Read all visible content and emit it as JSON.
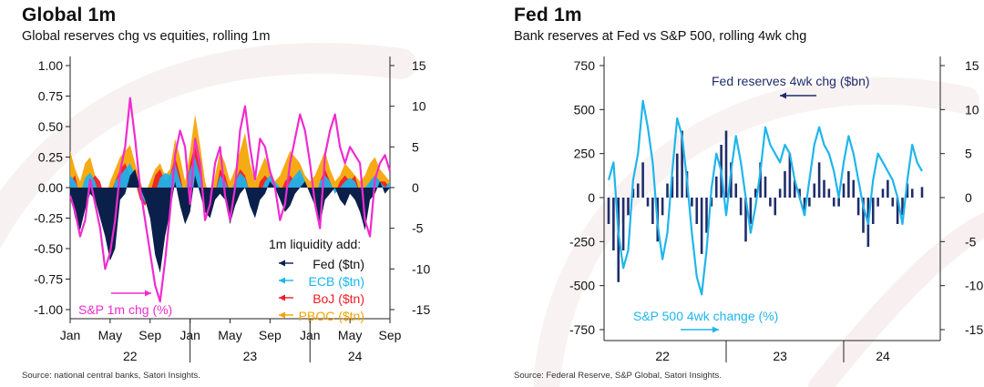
{
  "left": {
    "title": "Global 1m",
    "subtitle": "Global reserves chg vs equities, rolling 1m",
    "source": "Source: national central banks, Satori Insights.",
    "legend_title": "1m liquidity add:",
    "legend": [
      {
        "label": "Fed ($tn)",
        "color": "#0b1f4b"
      },
      {
        "label": "ECB ($tn)",
        "color": "#19b5ef"
      },
      {
        "label": "BoJ ($tn)",
        "color": "#ee1c25"
      },
      {
        "label": "PBOC ($tn)",
        "color": "#f5a300"
      }
    ],
    "sp_label": "S&P 1m chg (%)",
    "sp_color": "#f02bd0"
  },
  "right": {
    "title": "Fed 1m",
    "subtitle": "Bank reserves at Fed vs S&P 500, rolling 4wk chg",
    "source": "Source: Federal Reserve, S&P Global, Satori Insights.",
    "fed_label": "Fed reserves 4wk chg ($bn)",
    "sp_label": "S&P 500 4wk change (%)",
    "fed_color": "#1f2d6b",
    "sp_color": "#1fb5ec"
  },
  "chart_data": [
    {
      "type": "area",
      "x_tick_labels": [
        "Jan",
        "May",
        "Sep",
        "Jan",
        "May",
        "Sep",
        "Jan",
        "May",
        "Sep"
      ],
      "x_year_labels": [
        "22",
        "23",
        "24"
      ],
      "left_axis": {
        "ylim": [
          -1.0,
          1.0
        ],
        "ticks": [
          "1.00",
          "0.75",
          "0.50",
          "0.25",
          "0.00",
          "-0.25",
          "-0.50",
          "-0.75",
          "-1.00"
        ]
      },
      "right_axis": {
        "ylim": [
          -15,
          15
        ],
        "ticks": [
          "15",
          "10",
          "5",
          "0",
          "-5",
          "-10",
          "-15"
        ]
      },
      "x_months": [
        0,
        0.5,
        1,
        1.5,
        2,
        2.5,
        3,
        3.5,
        4,
        4.5,
        5,
        5.5,
        6,
        6.5,
        7,
        7.5,
        8,
        8.5,
        9,
        9.5,
        10,
        10.5,
        11,
        11.5,
        12,
        12.5,
        13,
        13.5,
        14,
        14.5,
        15,
        15.5,
        16,
        16.5,
        17,
        17.5,
        18,
        18.5,
        19,
        19.5,
        20,
        20.5,
        21,
        21.5,
        22,
        22.5,
        23,
        23.5,
        24,
        24.5,
        25,
        25.5,
        26,
        26.5,
        27,
        27.5,
        28,
        28.5,
        29,
        29.5,
        30,
        30.5,
        31,
        31.5,
        32
      ],
      "series": [
        {
          "name": "Fed ($tn)",
          "axis": "left",
          "values": [
            -0.05,
            -0.25,
            -0.35,
            -0.18,
            -0.05,
            -0.1,
            -0.25,
            -0.4,
            -0.6,
            -0.5,
            -0.1,
            -0.05,
            0.1,
            0.15,
            0.0,
            -0.1,
            -0.25,
            -0.55,
            -0.7,
            -0.4,
            -0.2,
            0.05,
            -0.15,
            -0.3,
            -0.2,
            0.1,
            -0.05,
            -0.2,
            -0.25,
            -0.1,
            -0.05,
            -0.1,
            -0.3,
            -0.15,
            -0.05,
            0.0,
            -0.15,
            -0.25,
            -0.1,
            -0.05,
            0.05,
            0.0,
            -0.1,
            -0.2,
            -0.15,
            -0.05,
            0.0,
            0.05,
            -0.05,
            -0.15,
            -0.3,
            -0.1,
            -0.05,
            0.0,
            -0.1,
            -0.15,
            -0.05,
            -0.1,
            -0.2,
            -0.35,
            -0.1,
            -0.05,
            0.05,
            -0.05,
            0.0
          ]
        },
        {
          "name": "ECB ($tn)",
          "axis": "left",
          "values": [
            0.1,
            0.05,
            -0.05,
            0.08,
            0.12,
            0.05,
            -0.08,
            -0.15,
            -0.1,
            0.05,
            0.1,
            0.15,
            0.2,
            0.1,
            -0.05,
            -0.12,
            -0.1,
            -0.05,
            0.08,
            0.12,
            0.1,
            0.2,
            0.05,
            -0.05,
            0.15,
            0.25,
            0.1,
            -0.1,
            -0.15,
            -0.05,
            0.1,
            0.05,
            -0.05,
            0.05,
            0.12,
            0.08,
            -0.05,
            -0.1,
            -0.05,
            0.05,
            0.1,
            0.05,
            0.0,
            -0.05,
            0.05,
            0.1,
            0.15,
            0.05,
            -0.05,
            -0.08,
            0.05,
            0.1,
            0.05,
            -0.05,
            0.0,
            0.05,
            0.08,
            0.05,
            -0.05,
            0.0,
            0.05,
            0.1,
            0.05,
            0.0,
            0.05
          ]
        },
        {
          "name": "BoJ ($tn)",
          "axis": "left",
          "values": [
            0.05,
            0.1,
            -0.1,
            -0.05,
            0.05,
            0.1,
            0.05,
            -0.1,
            -0.05,
            0.05,
            0.15,
            0.2,
            0.1,
            0.05,
            -0.1,
            -0.15,
            -0.05,
            0.1,
            0.15,
            0.05,
            0.1,
            0.25,
            0.1,
            -0.1,
            0.2,
            0.35,
            0.15,
            -0.15,
            -0.2,
            -0.05,
            0.15,
            0.1,
            -0.05,
            0.05,
            0.15,
            0.1,
            -0.05,
            -0.1,
            0.05,
            0.1,
            0.05,
            0.0,
            -0.05,
            0.05,
            0.1,
            0.05,
            0.1,
            0.05,
            -0.05,
            -0.1,
            0.05,
            0.15,
            0.05,
            -0.05,
            0.05,
            0.1,
            0.05,
            0.1,
            -0.05,
            -0.1,
            0.05,
            0.1,
            0.05,
            0.05,
            0.0
          ]
        },
        {
          "name": "PBOC ($tn)",
          "axis": "left",
          "values": [
            0.3,
            0.15,
            0.05,
            0.2,
            0.25,
            0.1,
            -0.05,
            -0.1,
            0.05,
            0.15,
            0.25,
            0.3,
            0.35,
            0.2,
            0.05,
            -0.05,
            0.05,
            0.15,
            0.2,
            0.1,
            0.15,
            0.4,
            0.25,
            0.05,
            0.3,
            0.6,
            0.35,
            0.05,
            -0.1,
            0.1,
            0.3,
            0.2,
            0.05,
            0.15,
            0.3,
            0.45,
            0.2,
            0.05,
            0.15,
            0.25,
            0.15,
            0.05,
            0.1,
            0.2,
            0.3,
            0.25,
            0.2,
            0.1,
            0.05,
            0.1,
            0.2,
            0.3,
            0.15,
            0.05,
            0.1,
            0.2,
            0.15,
            0.1,
            0.05,
            0.1,
            0.2,
            0.25,
            0.15,
            0.1,
            0.05
          ]
        },
        {
          "name": "S&P 1m chg (%)",
          "axis": "right",
          "values": [
            -1,
            -3,
            -6,
            -4,
            1,
            -2,
            -5,
            -10,
            -8,
            -4,
            2,
            5,
            11,
            6,
            0,
            -4,
            -8,
            -12,
            -14,
            -9,
            -3,
            4,
            7,
            5,
            -2,
            6,
            3,
            -4,
            -2,
            3,
            5,
            -1,
            -4,
            0,
            7,
            10,
            5,
            1,
            6,
            5,
            2,
            0,
            -4,
            -2,
            3,
            6,
            9,
            7,
            3,
            -2,
            -5,
            4,
            7,
            9,
            5,
            3,
            5,
            4,
            3,
            -4,
            -6,
            1,
            3,
            4,
            2
          ]
        }
      ]
    },
    {
      "type": "bar",
      "x_year_labels": [
        "22",
        "23",
        "24"
      ],
      "left_axis": {
        "ylim": [
          -750,
          750
        ],
        "ticks": [
          "750",
          "500",
          "250",
          "0",
          "-250",
          "-500",
          "-750"
        ]
      },
      "right_axis": {
        "ylim": [
          -15,
          15
        ],
        "ticks": [
          "15",
          "10",
          "5",
          "0",
          "-5",
          "-10",
          "-15"
        ]
      },
      "x_months": [
        0,
        0.5,
        1,
        1.5,
        2,
        2.5,
        3,
        3.5,
        4,
        4.5,
        5,
        5.5,
        6,
        6.5,
        7,
        7.5,
        8,
        8.5,
        9,
        9.5,
        10,
        10.5,
        11,
        11.5,
        12,
        12.5,
        13,
        13.5,
        14,
        14.5,
        15,
        15.5,
        16,
        16.5,
        17,
        17.5,
        18,
        18.5,
        19,
        19.5,
        20,
        20.5,
        21,
        21.5,
        22,
        22.5,
        23,
        23.5,
        24,
        24.5,
        25,
        25.5,
        26,
        26.5,
        27,
        27.5,
        28,
        28.5,
        29,
        29.5,
        30,
        30.5,
        31,
        31.5,
        32
      ],
      "series": [
        {
          "name": "Fed reserves 4wk chg ($bn)",
          "type": "bar",
          "axis": "left",
          "values": [
            -150,
            -300,
            -480,
            -300,
            -100,
            50,
            80,
            200,
            -50,
            -150,
            -250,
            -100,
            80,
            120,
            250,
            380,
            150,
            -50,
            -150,
            -320,
            -200,
            -50,
            120,
            300,
            380,
            200,
            80,
            -100,
            -250,
            -150,
            50,
            200,
            120,
            -50,
            -100,
            50,
            150,
            250,
            100,
            50,
            -100,
            -50,
            80,
            200,
            100,
            50,
            -50,
            -50,
            80,
            150,
            100,
            -100,
            -200,
            -280,
            -150,
            -50,
            50,
            100,
            -50,
            -150,
            -100,
            80,
            50,
            0,
            60
          ]
        },
        {
          "name": "S&P 500 4wk change (%)",
          "type": "line",
          "axis": "right",
          "values": [
            2,
            4,
            -4,
            -8,
            -6,
            2,
            5,
            11,
            8,
            4,
            -3,
            -7,
            -4,
            3,
            9,
            7,
            2,
            -4,
            -9,
            -11,
            -6,
            1,
            5,
            3,
            -2,
            3,
            7,
            4,
            0,
            -4,
            -1,
            3,
            8,
            6,
            5,
            4,
            6,
            5,
            2,
            0,
            -2,
            2,
            6,
            8,
            6,
            5,
            3,
            0,
            4,
            7,
            5,
            2,
            -1,
            -3,
            2,
            5,
            4,
            3,
            2,
            0,
            -3,
            2,
            6,
            4,
            3
          ]
        }
      ],
      "annotation_fed_arrow": "left",
      "annotation_sp_arrow": "right"
    }
  ]
}
